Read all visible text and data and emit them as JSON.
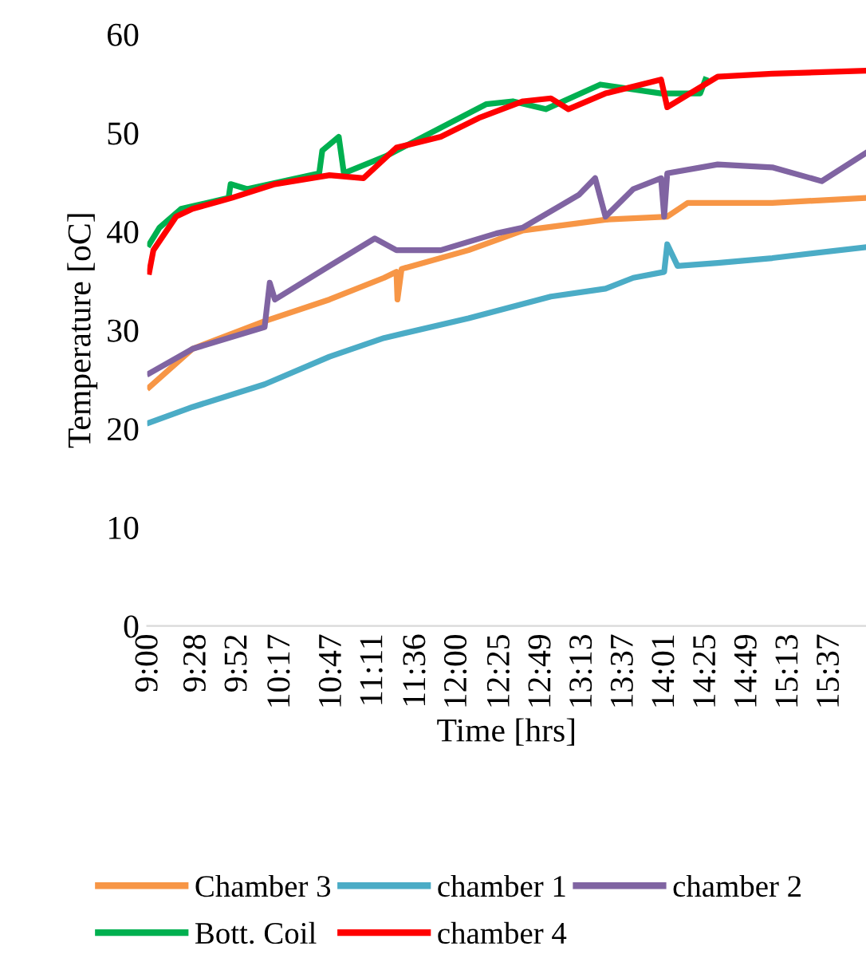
{
  "chart_data": {
    "type": "line",
    "xlabel": "Time [hrs]",
    "ylabel": "Temperature [oC]",
    "xlim": [
      8.98,
      15.96
    ],
    "ylim": [
      0,
      60
    ],
    "yticks": [
      0,
      10,
      20,
      30,
      40,
      50,
      60
    ],
    "xticks": [
      {
        "value": 9,
        "label": "9:00"
      },
      {
        "value": 9.4667,
        "label": "9:28"
      },
      {
        "value": 9.8667,
        "label": "9:52"
      },
      {
        "value": 10.2833,
        "label": "10:17"
      },
      {
        "value": 10.7833,
        "label": "10:47"
      },
      {
        "value": 11.1833,
        "label": "11:11"
      },
      {
        "value": 11.6,
        "label": "11:36"
      },
      {
        "value": 12,
        "label": "12:00"
      },
      {
        "value": 12.4167,
        "label": "12:25"
      },
      {
        "value": 12.8167,
        "label": "12:49"
      },
      {
        "value": 13.2167,
        "label": "13:13"
      },
      {
        "value": 13.6167,
        "label": "13:37"
      },
      {
        "value": 14.0167,
        "label": "14:01"
      },
      {
        "value": 14.4167,
        "label": "14:25"
      },
      {
        "value": 14.8167,
        "label": "14:49"
      },
      {
        "value": 15.2167,
        "label": "15:13"
      },
      {
        "value": 15.6167,
        "label": "15:37"
      }
    ],
    "legend": "bottom",
    "series": [
      {
        "name": "Chamber 3",
        "color": "#f79646",
        "x": [
          9.0,
          9.42,
          10.12,
          10.75,
          11.28,
          11.4,
          11.41,
          11.45,
          12.1,
          12.63,
          13.43,
          14.03,
          14.23,
          15.05,
          15.95
        ],
        "values": [
          24.2,
          28.1,
          30.9,
          33.1,
          35.3,
          35.9,
          33.1,
          36.2,
          38.1,
          40.1,
          41.2,
          41.5,
          42.9,
          42.9,
          43.4
        ]
      },
      {
        "name": "chamber 1",
        "color": "#4bacc6",
        "x": [
          9.0,
          9.42,
          10.12,
          10.75,
          11.28,
          12.1,
          12.9,
          13.43,
          13.7,
          14.0,
          14.03,
          14.13,
          14.52,
          15.05,
          15.95
        ],
        "values": [
          20.6,
          22.2,
          24.5,
          27.3,
          29.2,
          31.2,
          33.4,
          34.2,
          35.3,
          35.9,
          38.7,
          36.5,
          36.8,
          37.3,
          38.4
        ]
      },
      {
        "name": "chamber 2",
        "color": "#8064a2",
        "x": [
          9.0,
          9.42,
          10.12,
          10.17,
          10.22,
          10.75,
          11.19,
          11.4,
          11.83,
          12.37,
          12.63,
          13.17,
          13.33,
          13.43,
          13.7,
          13.97,
          14.0,
          14.03,
          14.52,
          15.05,
          15.53,
          15.95
        ],
        "values": [
          25.6,
          28.1,
          30.3,
          34.8,
          33.1,
          36.5,
          39.3,
          38.1,
          38.1,
          39.8,
          40.4,
          43.7,
          45.4,
          41.5,
          44.3,
          45.4,
          41.5,
          45.9,
          46.8,
          46.5,
          45.1,
          47.9
        ]
      },
      {
        "name": "Bott. Coil",
        "color": "#00b050",
        "x": [
          9.0,
          9.1,
          9.31,
          9.77,
          9.79,
          9.95,
          10.65,
          10.68,
          10.84,
          10.89,
          11.29,
          12.27,
          12.53,
          12.85,
          13.38,
          13.97,
          14.35,
          14.4
        ],
        "values": [
          38.7,
          40.4,
          42.3,
          43.4,
          44.8,
          44.3,
          45.9,
          48.2,
          49.6,
          45.9,
          47.6,
          52.9,
          53.2,
          52.4,
          54.9,
          54.0,
          54.0,
          55.4
        ]
      },
      {
        "name": "chamber 4",
        "color": "#ff0000",
        "x": [
          9.0,
          9.04,
          9.26,
          9.42,
          9.8,
          10.22,
          10.75,
          11.08,
          11.4,
          11.83,
          12.2,
          12.63,
          12.9,
          13.07,
          13.43,
          13.97,
          14.03,
          14.52,
          15.05,
          15.95
        ],
        "values": [
          35.9,
          38.1,
          41.5,
          42.3,
          43.4,
          44.8,
          45.7,
          45.4,
          48.5,
          49.6,
          51.5,
          53.2,
          53.5,
          52.4,
          54.0,
          55.4,
          52.6,
          55.7,
          56.0,
          56.3
        ]
      }
    ]
  }
}
